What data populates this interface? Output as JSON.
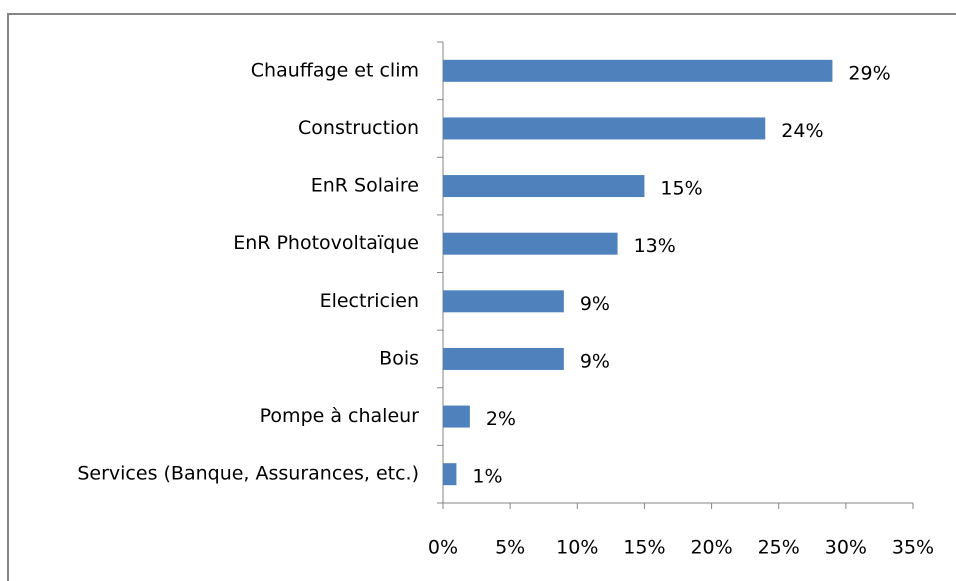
{
  "chart_data": {
    "type": "bar",
    "orientation": "horizontal",
    "categories": [
      "Chauffage et clim",
      "Construction",
      "EnR Solaire",
      "EnR Photovoltaïque",
      "Electricien",
      "Bois",
      "Pompe à chaleur",
      "Services (Banque, Assurances, etc.)"
    ],
    "values": [
      29,
      24,
      15,
      13,
      9,
      9,
      2,
      1
    ],
    "value_labels": [
      "29%",
      "24%",
      "15%",
      "13%",
      "9%",
      "9%",
      "2%",
      "1%"
    ],
    "color": "#4f81bd",
    "xlim": [
      0,
      35
    ],
    "xticks": [
      {
        "value": 0,
        "label": "0%"
      },
      {
        "value": 5,
        "label": "5%"
      },
      {
        "value": 10,
        "label": "10%"
      },
      {
        "value": 15,
        "label": "15%"
      },
      {
        "value": 20,
        "label": "20%"
      },
      {
        "value": 25,
        "label": "25%"
      },
      {
        "value": 30,
        "label": "30%"
      },
      {
        "value": 35,
        "label": "35%"
      }
    ],
    "grid": false
  }
}
